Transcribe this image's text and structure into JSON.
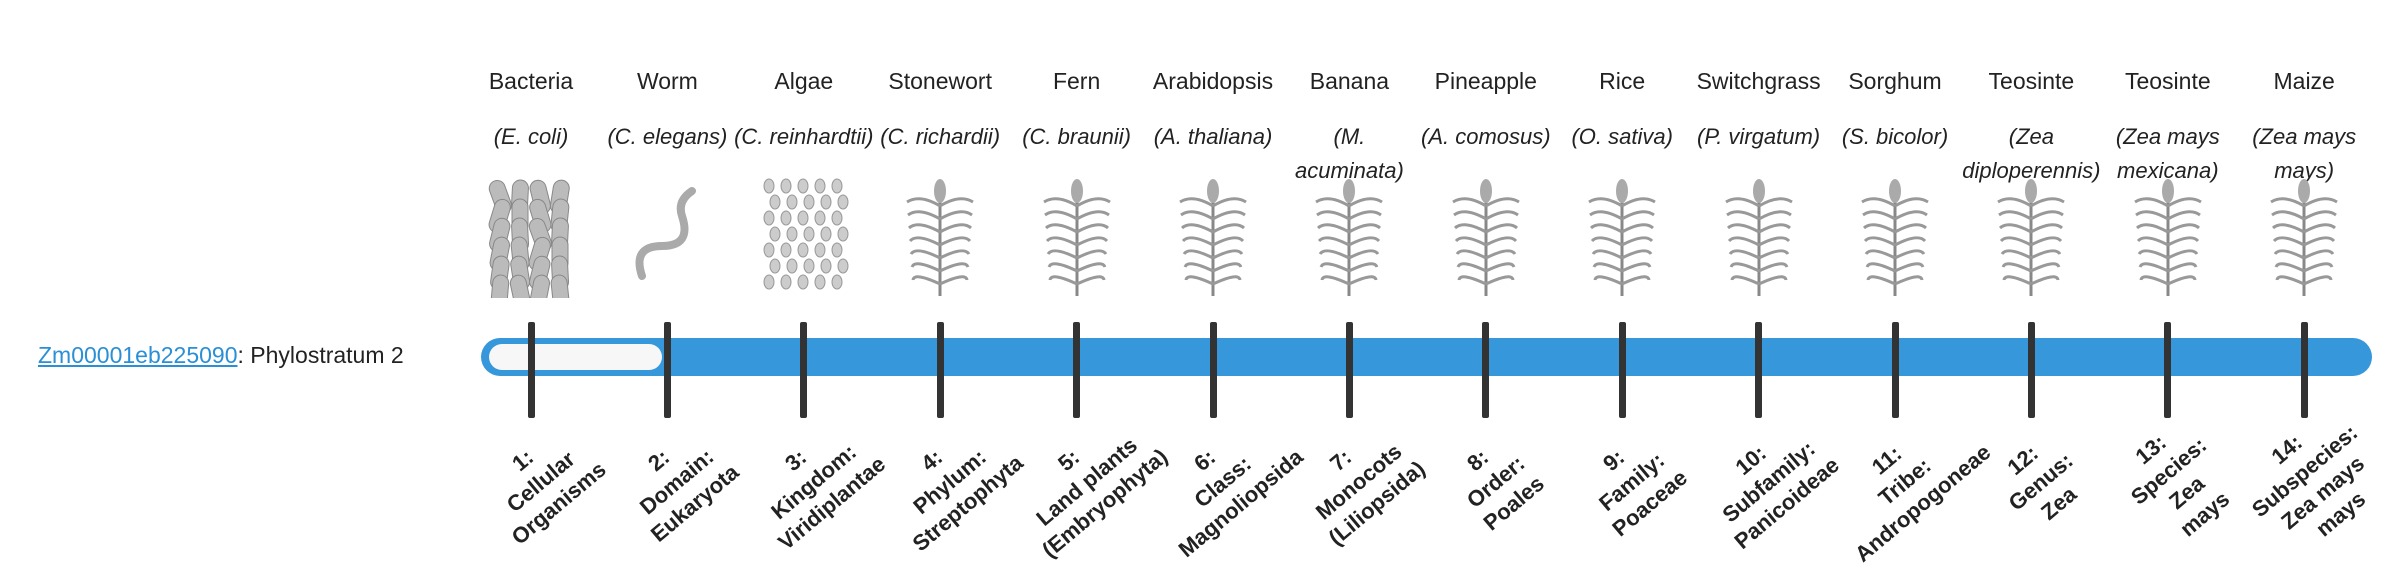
{
  "gene": {
    "id": "Zm00001eb225090",
    "label": ": Phylostratum 2"
  },
  "organisms": [
    {
      "name": "Bacteria",
      "species": "(E. coli)"
    },
    {
      "name": "Worm",
      "species": "(C. elegans)"
    },
    {
      "name": "Algae",
      "species": "(C. reinhardtii)"
    },
    {
      "name": "Stonewort",
      "species": "(C. richardii)"
    },
    {
      "name": "Fern",
      "species": "(C. braunii)"
    },
    {
      "name": "Arabidopsis",
      "species": "(A. thaliana)"
    },
    {
      "name": "Banana",
      "species": "(M. acuminata)"
    },
    {
      "name": "Pineapple",
      "species": "(A. comosus)"
    },
    {
      "name": "Rice",
      "species": "(O. sativa)"
    },
    {
      "name": "Switchgrass",
      "species": "(P. virgatum)"
    },
    {
      "name": "Sorghum",
      "species": "(S. bicolor)"
    },
    {
      "name": "Teosinte",
      "species": "(Zea diploperennis)"
    },
    {
      "name": "Teosinte",
      "species": "(Zea mays mexicana)"
    },
    {
      "name": "Maize",
      "species": "(Zea mays mays)"
    }
  ],
  "strata": [
    [
      "1:",
      "Cellular",
      "Organisms"
    ],
    [
      "2:",
      "Domain:",
      "Eukaryota"
    ],
    [
      "3:",
      "Kingdom:",
      "Viridiplantae"
    ],
    [
      "4:",
      "Phylum:",
      "Streptophyta"
    ],
    [
      "5:",
      "Land plants",
      "(Embryophyta)"
    ],
    [
      "6:",
      "Class:",
      "Magnoliopsida"
    ],
    [
      "7:",
      "Monocots",
      "(Liliopsida)"
    ],
    [
      "8:",
      "Order:",
      "Poales"
    ],
    [
      "9:",
      "Family:",
      "Poaceae"
    ],
    [
      "10:",
      "Subfamily:",
      "Panicoideae"
    ],
    [
      "11:",
      "Tribe:",
      "Andropogoneae"
    ],
    [
      "12:",
      "Genus:",
      "Zea"
    ],
    [
      "13:",
      "Species:",
      "Zea",
      "mays"
    ],
    [
      "14:",
      "Subspecies:",
      "Zea mays",
      "mays"
    ]
  ]
}
